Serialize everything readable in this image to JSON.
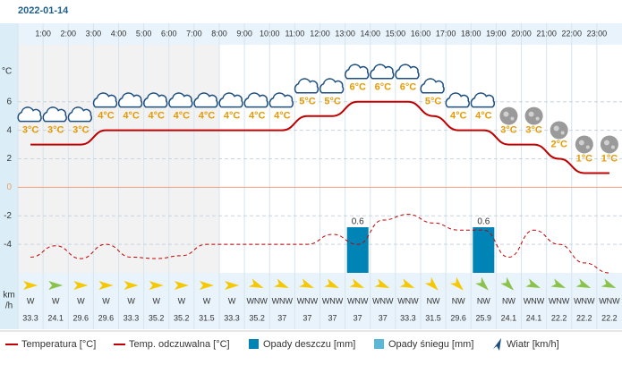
{
  "chart_data": {
    "type": "line",
    "title": "2022-01-14",
    "y_unit": "°C",
    "categories": [
      null,
      "1:00",
      "2:00",
      "3:00",
      "4:00",
      "5:00",
      "6:00",
      "7:00",
      "8:00",
      "9:00",
      "10:00",
      "11:00",
      "12:00",
      "13:00",
      "14:00",
      "15:00",
      "16:00",
      "17:00",
      "18:00",
      "19:00",
      "20:00",
      "21:00",
      "22:00",
      "23:00"
    ],
    "ylim": [
      -6,
      10
    ],
    "yticks": [
      -4,
      -2,
      0,
      2,
      4,
      6
    ],
    "y2lim": [
      0,
      3
    ],
    "grid": true,
    "series": [
      {
        "name": "Temperatura [°C]",
        "color": "#c00000",
        "values": [
          3,
          3,
          3,
          4,
          4,
          4,
          4,
          4,
          4,
          4,
          4,
          5,
          5,
          6,
          6,
          6,
          5,
          4,
          4,
          3,
          3,
          2,
          1,
          1
        ],
        "value_labels": [
          "3°C",
          "3°C",
          "3°C",
          "4°C",
          "4°C",
          "4°C",
          "4°C",
          "4°C",
          "4°C",
          "4°C",
          "4°C",
          "5°C",
          "5°C",
          "6°C",
          "6°C",
          "6°C",
          "5°C",
          "4°C",
          "4°C",
          "3°C",
          "3°C",
          "2°C",
          "1°C",
          "1°C"
        ]
      },
      {
        "name": "Temp. odczuwalna [°C]",
        "color": "#c00000",
        "values": [
          -4.9,
          -4.1,
          -5,
          -4,
          -4.9,
          -5,
          -4.8,
          -4,
          -4,
          -4,
          -4,
          -4,
          -3.3,
          -4,
          -2.3,
          -1.9,
          -2.5,
          -3,
          -3,
          -4.9,
          -3,
          -4,
          -5.3,
          -6
        ]
      },
      {
        "name": "Opady deszczu [mm]",
        "color": "#0084b5",
        "axis": "y2",
        "values": [
          null,
          null,
          null,
          null,
          null,
          null,
          null,
          null,
          null,
          null,
          null,
          null,
          null,
          0.6,
          null,
          null,
          null,
          null,
          0.6,
          null,
          null,
          null,
          null,
          null
        ]
      },
      {
        "name": "Opady śniegu [mm]",
        "color": "#5bb7d5",
        "axis": "y2",
        "values": [
          null,
          null,
          null,
          null,
          null,
          null,
          null,
          null,
          null,
          null,
          null,
          null,
          null,
          null,
          null,
          null,
          null,
          null,
          null,
          null,
          null,
          null,
          null,
          null
        ]
      }
    ],
    "wind": {
      "name": "Wiatr [km/h]",
      "unit": [
        "km",
        "/h"
      ],
      "directions": [
        "W",
        "W",
        "W",
        "W",
        "W",
        "W",
        "W",
        "W",
        "W",
        "WNW",
        "WNW",
        "WNW",
        "WNW",
        "WNW",
        "WNW",
        "WNW",
        "NW",
        "NW",
        "NW",
        "NW",
        "WNW",
        "WNW",
        "WNW",
        "WNW"
      ],
      "speeds": [
        33.3,
        24.1,
        29.6,
        29.6,
        33.3,
        35.2,
        35.2,
        31.5,
        33.3,
        35.2,
        37,
        37,
        37,
        37,
        37,
        33.3,
        31.5,
        29.6,
        25.9,
        24.1,
        24.1,
        22.2,
        22.2,
        22.2
      ]
    }
  }
}
